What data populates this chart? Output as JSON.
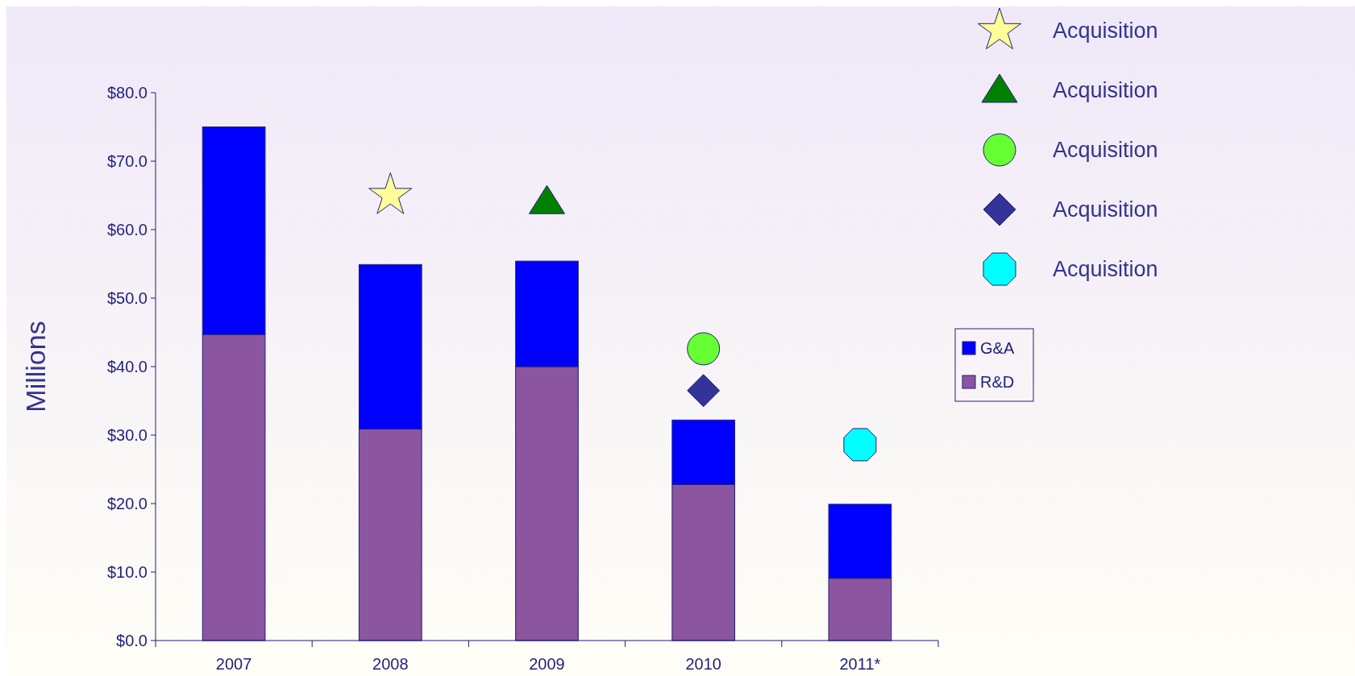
{
  "chart_data": {
    "type": "bar",
    "stacked": true,
    "ylabel": "Millions",
    "categories": [
      "2007",
      "2008",
      "2009",
      "2010",
      "2011*"
    ],
    "series": [
      {
        "name": "R&D",
        "color": "#8b55a0",
        "values": [
          44.7,
          30.9,
          40.0,
          22.8,
          9.1
        ]
      },
      {
        "name": "G&A",
        "color": "#0000ff",
        "values": [
          30.3,
          24.0,
          15.4,
          9.4,
          10.8
        ]
      },
      {
        "name": "Acquisition",
        "type": "scatter",
        "marker": "star",
        "color": "#ffff99",
        "values": [
          null,
          65.0,
          null,
          null,
          null
        ]
      },
      {
        "name": "Acquisition",
        "type": "scatter",
        "marker": "triangle",
        "color": "#008000",
        "values": [
          null,
          null,
          64.1,
          null,
          null
        ]
      },
      {
        "name": "Acquisition",
        "type": "scatter",
        "marker": "circle",
        "color": "#66ff33",
        "values": [
          null,
          null,
          null,
          42.6,
          null
        ]
      },
      {
        "name": "Acquisition",
        "type": "scatter",
        "marker": "diamond",
        "color": "#333399",
        "values": [
          null,
          null,
          null,
          36.5,
          null
        ]
      },
      {
        "name": "Acquisition",
        "type": "scatter",
        "marker": "square",
        "color": "#00ffff",
        "values": [
          null,
          null,
          null,
          null,
          28.6
        ]
      }
    ],
    "ylim": [
      0,
      80
    ],
    "yticks": [
      {
        "value": 0,
        "label": "$0.0"
      },
      {
        "value": 10,
        "label": "$10.0"
      },
      {
        "value": 20,
        "label": "$20.0"
      },
      {
        "value": 30,
        "label": "$30.0"
      },
      {
        "value": 40,
        "label": "$40.0"
      },
      {
        "value": 50,
        "label": "$50.0"
      },
      {
        "value": 60,
        "label": "$60.0"
      },
      {
        "value": 70,
        "label": "$70.0"
      },
      {
        "value": 80,
        "label": "$80.0"
      }
    ],
    "grid": false,
    "legend": "right"
  }
}
